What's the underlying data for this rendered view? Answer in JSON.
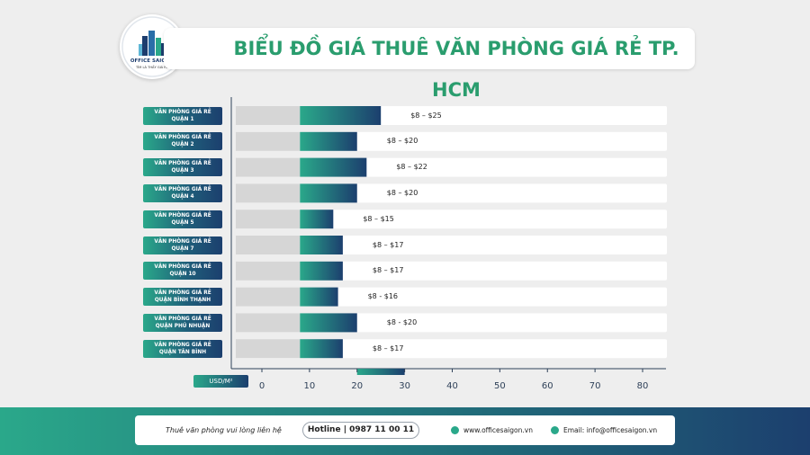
{
  "header": {
    "title": "BIỂU ĐỒ GIÁ THUÊ VĂN PHÒNG GIÁ RẺ TP. HCM",
    "logo_name": "OFFICE SAIGON",
    "logo_tagline": "TÌM LÀ THẤY GIÁ RẺ"
  },
  "chart_data": {
    "type": "bar",
    "orientation": "horizontal",
    "categories": [
      [
        "VĂN PHÒNG GIÁ RẺ",
        "QUẬN 1"
      ],
      [
        "VĂN PHÒNG GIÁ RẺ",
        "QUẬN 2"
      ],
      [
        "VĂN PHÒNG GIÁ RẺ",
        "QUẬN 3"
      ],
      [
        "VĂN PHÒNG GIÁ RẺ",
        "QUẬN 4"
      ],
      [
        "VĂN PHÒNG GIÁ RẺ",
        "QUẬN 5"
      ],
      [
        "VĂN PHÒNG GIÁ RẺ",
        "QUẬN 7"
      ],
      [
        "VĂN PHÒNG GIÁ RẺ",
        "QUẬN 10"
      ],
      [
        "VĂN PHÒNG GIÁ RẺ",
        "QUẬN BÌNH THẠNH"
      ],
      [
        "VĂN PHÒNG GIÁ RẺ",
        "QUẬN PHÚ NHUẬN"
      ],
      [
        "VĂN PHÒNG GIÁ RẺ",
        "QUẬN TÂN BÌNH"
      ]
    ],
    "ranges": [
      [
        8,
        25
      ],
      [
        8,
        20
      ],
      [
        8,
        22
      ],
      [
        8,
        20
      ],
      [
        8,
        15
      ],
      [
        8,
        17
      ],
      [
        8,
        17
      ],
      [
        8,
        16
      ],
      [
        8,
        20
      ],
      [
        8,
        17
      ]
    ],
    "value_labels": [
      "$8 – $25",
      "$8 – $20",
      "$8 – $22",
      "$8 – $20",
      "$8 – $15",
      "$8 – $17",
      "$8 – $17",
      "$8 - $16",
      "$8 - $20",
      "$8 – $17"
    ],
    "xlabel": "USD/M²",
    "xlim": [
      0,
      80
    ],
    "xticks": [
      "0",
      "10",
      "20",
      "30",
      "40",
      "50",
      "60",
      "70",
      "80"
    ],
    "colors": {
      "base": "#d6d6d6",
      "range_start": "#2aa88a",
      "range_end": "#1c3f6e",
      "track": "#ffffff"
    }
  },
  "footer": {
    "text": "Thuê văn phòng vui lòng liên hệ",
    "hotline": "Hotline | 0987 11 00 11",
    "website": "www.officesaigon.vn",
    "email": "Email: info@officesaigon.vn"
  }
}
